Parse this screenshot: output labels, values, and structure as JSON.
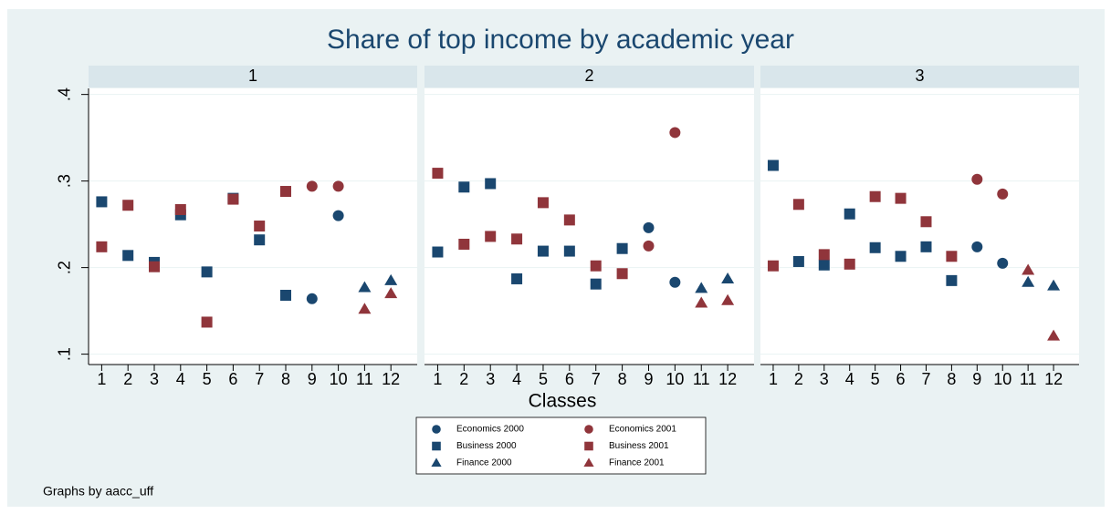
{
  "title": "Share of top income by academic year",
  "x_label": "Classes",
  "note": "Graphs by aacc_uff",
  "chart_data": [
    {
      "type": "scatter",
      "title": "1",
      "xlim": [
        0.5,
        13
      ],
      "xticks": [
        1,
        2,
        3,
        4,
        5,
        6,
        7,
        8,
        9,
        10,
        11,
        12
      ],
      "ylim": [
        0.088,
        0.407
      ],
      "yticks": [
        {
          "value": 0.1,
          "label": ".1"
        },
        {
          "value": 0.2,
          "label": ".2"
        },
        {
          "value": 0.3,
          "label": ".3"
        },
        {
          "value": 0.4,
          "label": ".4"
        }
      ],
      "grid": true,
      "series": [
        {
          "name": "Economics 2000",
          "color": "#1a476f",
          "marker": "circle",
          "x": [
            9,
            10
          ],
          "values": [
            0.164,
            0.26
          ]
        },
        {
          "name": "Economics 2001",
          "color": "#90353b",
          "marker": "circle",
          "x": [
            9,
            10
          ],
          "values": [
            0.294,
            0.294
          ]
        },
        {
          "name": "Business 2000",
          "color": "#1a476f",
          "marker": "square",
          "x": [
            1,
            2,
            3,
            4,
            5,
            6,
            7,
            8
          ],
          "values": [
            0.276,
            0.214,
            0.206,
            0.261,
            0.195,
            0.28,
            0.232,
            0.168
          ]
        },
        {
          "name": "Business 2001",
          "color": "#90353b",
          "marker": "square",
          "x": [
            1,
            2,
            3,
            4,
            5,
            6,
            7,
            8
          ],
          "values": [
            0.224,
            0.272,
            0.201,
            0.267,
            0.137,
            0.279,
            0.248,
            0.288
          ]
        },
        {
          "name": "Finance 2000",
          "color": "#1a476f",
          "marker": "triangle",
          "x": [
            11,
            12
          ],
          "values": [
            0.177,
            0.185
          ]
        },
        {
          "name": "Finance 2001",
          "color": "#90353b",
          "marker": "triangle",
          "x": [
            11,
            12
          ],
          "values": [
            0.152,
            0.17
          ]
        }
      ]
    },
    {
      "type": "scatter",
      "title": "2",
      "xlim": [
        0.5,
        13
      ],
      "xticks": [
        1,
        2,
        3,
        4,
        5,
        6,
        7,
        8,
        9,
        10,
        11,
        12
      ],
      "ylim": [
        0.088,
        0.407
      ],
      "yticks": [
        {
          "value": 0.1,
          "label": ".1"
        },
        {
          "value": 0.2,
          "label": ".2"
        },
        {
          "value": 0.3,
          "label": ".3"
        },
        {
          "value": 0.4,
          "label": ".4"
        }
      ],
      "grid": true,
      "series": [
        {
          "name": "Economics 2000",
          "color": "#1a476f",
          "marker": "circle",
          "x": [
            9,
            10
          ],
          "values": [
            0.246,
            0.183
          ]
        },
        {
          "name": "Economics 2001",
          "color": "#90353b",
          "marker": "circle",
          "x": [
            9,
            10
          ],
          "values": [
            0.225,
            0.356
          ]
        },
        {
          "name": "Business 2000",
          "color": "#1a476f",
          "marker": "square",
          "x": [
            1,
            2,
            3,
            4,
            5,
            6,
            7,
            8
          ],
          "values": [
            0.218,
            0.293,
            0.297,
            0.187,
            0.219,
            0.219,
            0.181,
            0.222
          ]
        },
        {
          "name": "Business 2001",
          "color": "#90353b",
          "marker": "square",
          "x": [
            1,
            2,
            3,
            4,
            5,
            6,
            7,
            8
          ],
          "values": [
            0.309,
            0.227,
            0.236,
            0.233,
            0.275,
            0.255,
            0.202,
            0.193
          ]
        },
        {
          "name": "Finance 2000",
          "color": "#1a476f",
          "marker": "triangle",
          "x": [
            11,
            12
          ],
          "values": [
            0.176,
            0.187
          ]
        },
        {
          "name": "Finance 2001",
          "color": "#90353b",
          "marker": "triangle",
          "x": [
            11,
            12
          ],
          "values": [
            0.159,
            0.162
          ]
        }
      ]
    },
    {
      "type": "scatter",
      "title": "3",
      "xlim": [
        0.5,
        13
      ],
      "xticks": [
        1,
        2,
        3,
        4,
        5,
        6,
        7,
        8,
        9,
        10,
        11,
        12
      ],
      "ylim": [
        0.088,
        0.407
      ],
      "yticks": [
        {
          "value": 0.1,
          "label": ".1"
        },
        {
          "value": 0.2,
          "label": ".2"
        },
        {
          "value": 0.3,
          "label": ".3"
        },
        {
          "value": 0.4,
          "label": ".4"
        }
      ],
      "grid": true,
      "series": [
        {
          "name": "Economics 2000",
          "color": "#1a476f",
          "marker": "circle",
          "x": [
            9,
            10
          ],
          "values": [
            0.224,
            0.205
          ]
        },
        {
          "name": "Economics 2001",
          "color": "#90353b",
          "marker": "circle",
          "x": [
            9,
            10
          ],
          "values": [
            0.302,
            0.285
          ]
        },
        {
          "name": "Business 2000",
          "color": "#1a476f",
          "marker": "square",
          "x": [
            1,
            2,
            3,
            4,
            5,
            6,
            7,
            8
          ],
          "values": [
            0.318,
            0.207,
            0.203,
            0.262,
            0.223,
            0.213,
            0.224,
            0.185
          ]
        },
        {
          "name": "Business 2001",
          "color": "#90353b",
          "marker": "square",
          "x": [
            1,
            2,
            3,
            4,
            5,
            6,
            7,
            8
          ],
          "values": [
            0.202,
            0.273,
            0.215,
            0.204,
            0.282,
            0.28,
            0.253,
            0.213
          ]
        },
        {
          "name": "Finance 2000",
          "color": "#1a476f",
          "marker": "triangle",
          "x": [
            11,
            12
          ],
          "values": [
            0.183,
            0.179
          ]
        },
        {
          "name": "Finance 2001",
          "color": "#90353b",
          "marker": "triangle",
          "x": [
            11,
            12
          ],
          "values": [
            0.197,
            0.121
          ]
        }
      ]
    }
  ]
}
